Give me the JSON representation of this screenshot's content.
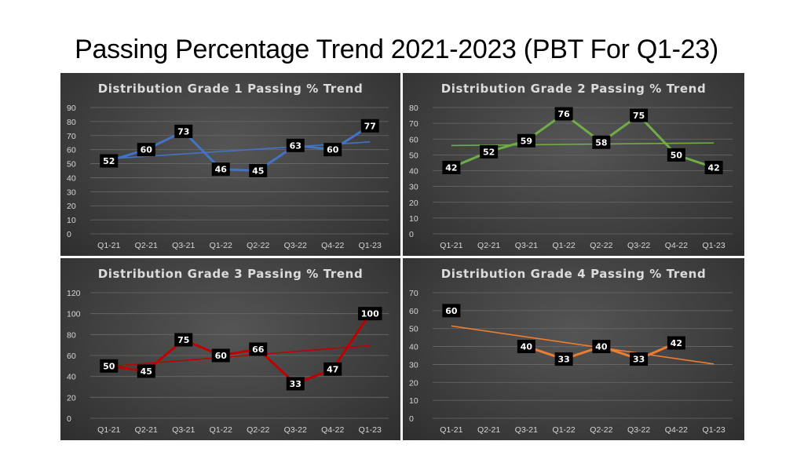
{
  "page": {
    "title": "Passing Percentage Trend 2021-2023 (PBT For Q1-23)"
  },
  "chart_data": [
    {
      "type": "line",
      "title": "Distribution Grade 1 Passing % Trend",
      "categories": [
        "Q1-21",
        "Q2-21",
        "Q3-21",
        "Q1-22",
        "Q2-22",
        "Q3-22",
        "Q4-22",
        "Q1-23"
      ],
      "values": [
        52,
        60,
        73,
        46,
        45,
        63,
        60,
        77
      ],
      "ylim": [
        0,
        90
      ],
      "yticks": [
        0,
        10,
        20,
        30,
        40,
        50,
        60,
        70,
        80,
        90
      ],
      "color": "#4472c4",
      "trendline": true,
      "grid": true
    },
    {
      "type": "line",
      "title": "Distribution Grade 2 Passing % Trend",
      "categories": [
        "Q1-21",
        "Q2-21",
        "Q3-21",
        "Q1-22",
        "Q2-22",
        "Q3-22",
        "Q4-22",
        "Q1-23"
      ],
      "values": [
        42,
        52,
        59,
        76,
        58,
        75,
        50,
        42
      ],
      "ylim": [
        0,
        80
      ],
      "yticks": [
        0,
        10,
        20,
        30,
        40,
        50,
        60,
        70,
        80
      ],
      "color": "#70ad47",
      "trendline": true,
      "grid": true
    },
    {
      "type": "line",
      "title": "Distribution Grade 3 Passing % Trend",
      "categories": [
        "Q1-21",
        "Q2-21",
        "Q3-21",
        "Q1-22",
        "Q2-22",
        "Q3-22",
        "Q4-22",
        "Q1-23"
      ],
      "values": [
        50,
        45,
        75,
        60,
        66,
        33,
        47,
        100
      ],
      "ylim": [
        0,
        120
      ],
      "yticks": [
        0,
        20,
        40,
        60,
        80,
        100,
        120
      ],
      "color": "#c00000",
      "trendline": true,
      "grid": true
    },
    {
      "type": "line",
      "title": "Distribution Grade 4 Passing % Trend",
      "categories": [
        "Q1-21",
        "Q2-21",
        "Q3-21",
        "Q1-22",
        "Q2-22",
        "Q3-22",
        "Q4-22",
        "Q1-23"
      ],
      "values": [
        60,
        null,
        40,
        33,
        40,
        33,
        42,
        null
      ],
      "ylim": [
        0,
        70
      ],
      "yticks": [
        0,
        10,
        20,
        30,
        40,
        50,
        60,
        70
      ],
      "color": "#ed7d31",
      "trendline": true,
      "grid": true
    }
  ]
}
